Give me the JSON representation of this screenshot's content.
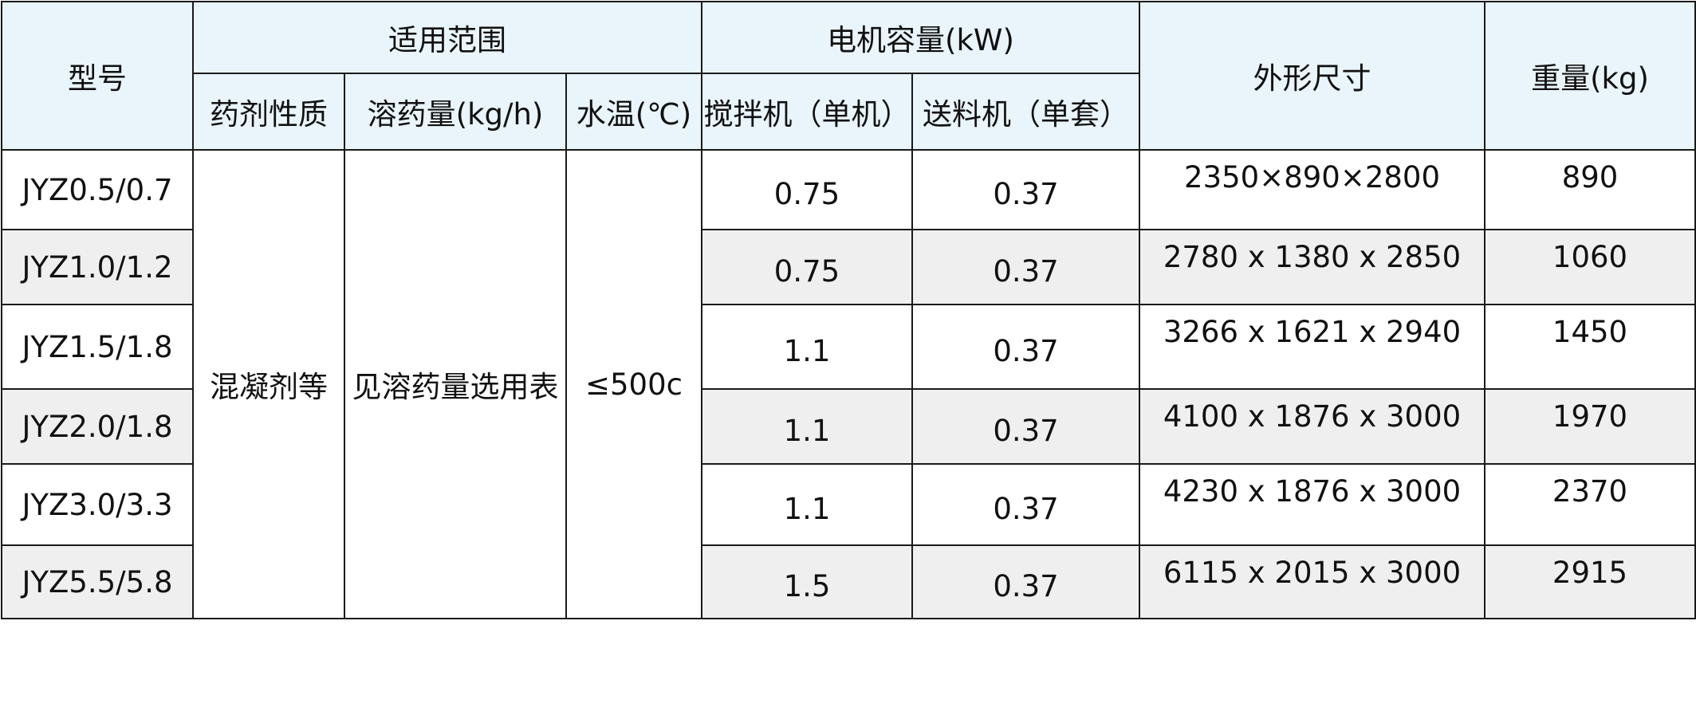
{
  "header": {
    "model": "型号",
    "scope": "适用范围",
    "motor": "电机容量(kW)",
    "dimensions": "外形尺寸",
    "weight": "重量(kg)",
    "sub": {
      "agent": "药剂性质",
      "dose": "溶药量(kg/h)",
      "water_temp": "水温(℃)",
      "mixer": "搅拌机（单机）",
      "feeder": "送料机（单套）"
    }
  },
  "merged": {
    "agent": "混凝剂等",
    "dose": "见溶药量选用表",
    "water_temp": "≤500c"
  },
  "rows": [
    {
      "model": "JYZ0.5/0.7",
      "mixer": "0.75",
      "feeder": "0.37",
      "dimensions": "2350×890×2800",
      "weight": "890"
    },
    {
      "model": "JYZ1.0/1.2",
      "mixer": "0.75",
      "feeder": "0.37",
      "dimensions": "2780 x 1380 x 2850",
      "weight": "1060"
    },
    {
      "model": "JYZ1.5/1.8",
      "mixer": "1.1",
      "feeder": "0.37",
      "dimensions": "3266 x 1621 x 2940",
      "weight": "1450"
    },
    {
      "model": "JYZ2.0/1.8",
      "mixer": "1.1",
      "feeder": "0.37",
      "dimensions": "4100 x 1876 x 3000",
      "weight": "1970"
    },
    {
      "model": "JYZ3.0/3.3",
      "mixer": "1.1",
      "feeder": "0.37",
      "dimensions": "4230 x 1876 x 3000",
      "weight": "2370"
    },
    {
      "model": "JYZ5.5/5.8",
      "mixer": "1.5",
      "feeder": "0.37",
      "dimensions": "6115 x 2015 x 3000",
      "weight": "2915"
    }
  ],
  "colors": {
    "header_bg": "#e9f4fb",
    "alt_row_bg": "#efefef",
    "border": "#1a1a1a"
  }
}
